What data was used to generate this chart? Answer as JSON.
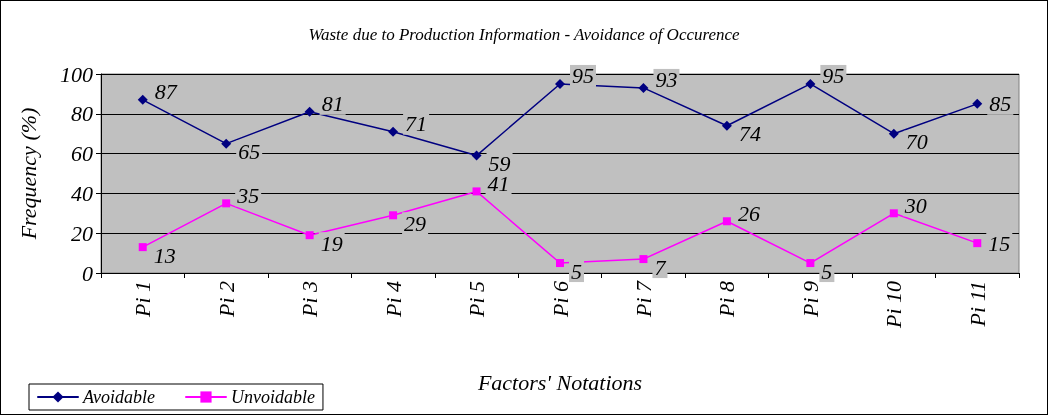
{
  "chart_data": {
    "type": "line",
    "title": "Waste due to Production Information - Avoidance of Occurence",
    "xlabel": "Factors' Notations",
    "ylabel": "Frequency (%)",
    "categories": [
      "Pi 1",
      "Pi 2",
      "Pi 3",
      "Pi 4",
      "Pi 5",
      "Pi 6",
      "Pi 7",
      "Pi 8",
      "Pi 9",
      "Pi 10",
      "Pi 11"
    ],
    "series": [
      {
        "name": "Avoidable",
        "color": "#000080",
        "marker": "diamond",
        "values": [
          87,
          65,
          81,
          71,
          59,
          95,
          93,
          74,
          95,
          70,
          85
        ]
      },
      {
        "name": "Unvoidable",
        "color": "#ff00ff",
        "marker": "square",
        "values": [
          13,
          35,
          19,
          29,
          41,
          5,
          7,
          26,
          5,
          30,
          15
        ]
      }
    ],
    "ylim": [
      0,
      100
    ],
    "yticks": [
      0,
      20,
      40,
      60,
      80,
      100
    ],
    "grid": "y",
    "legend": "bottom left",
    "data_labels": true,
    "line_style": "solid"
  }
}
